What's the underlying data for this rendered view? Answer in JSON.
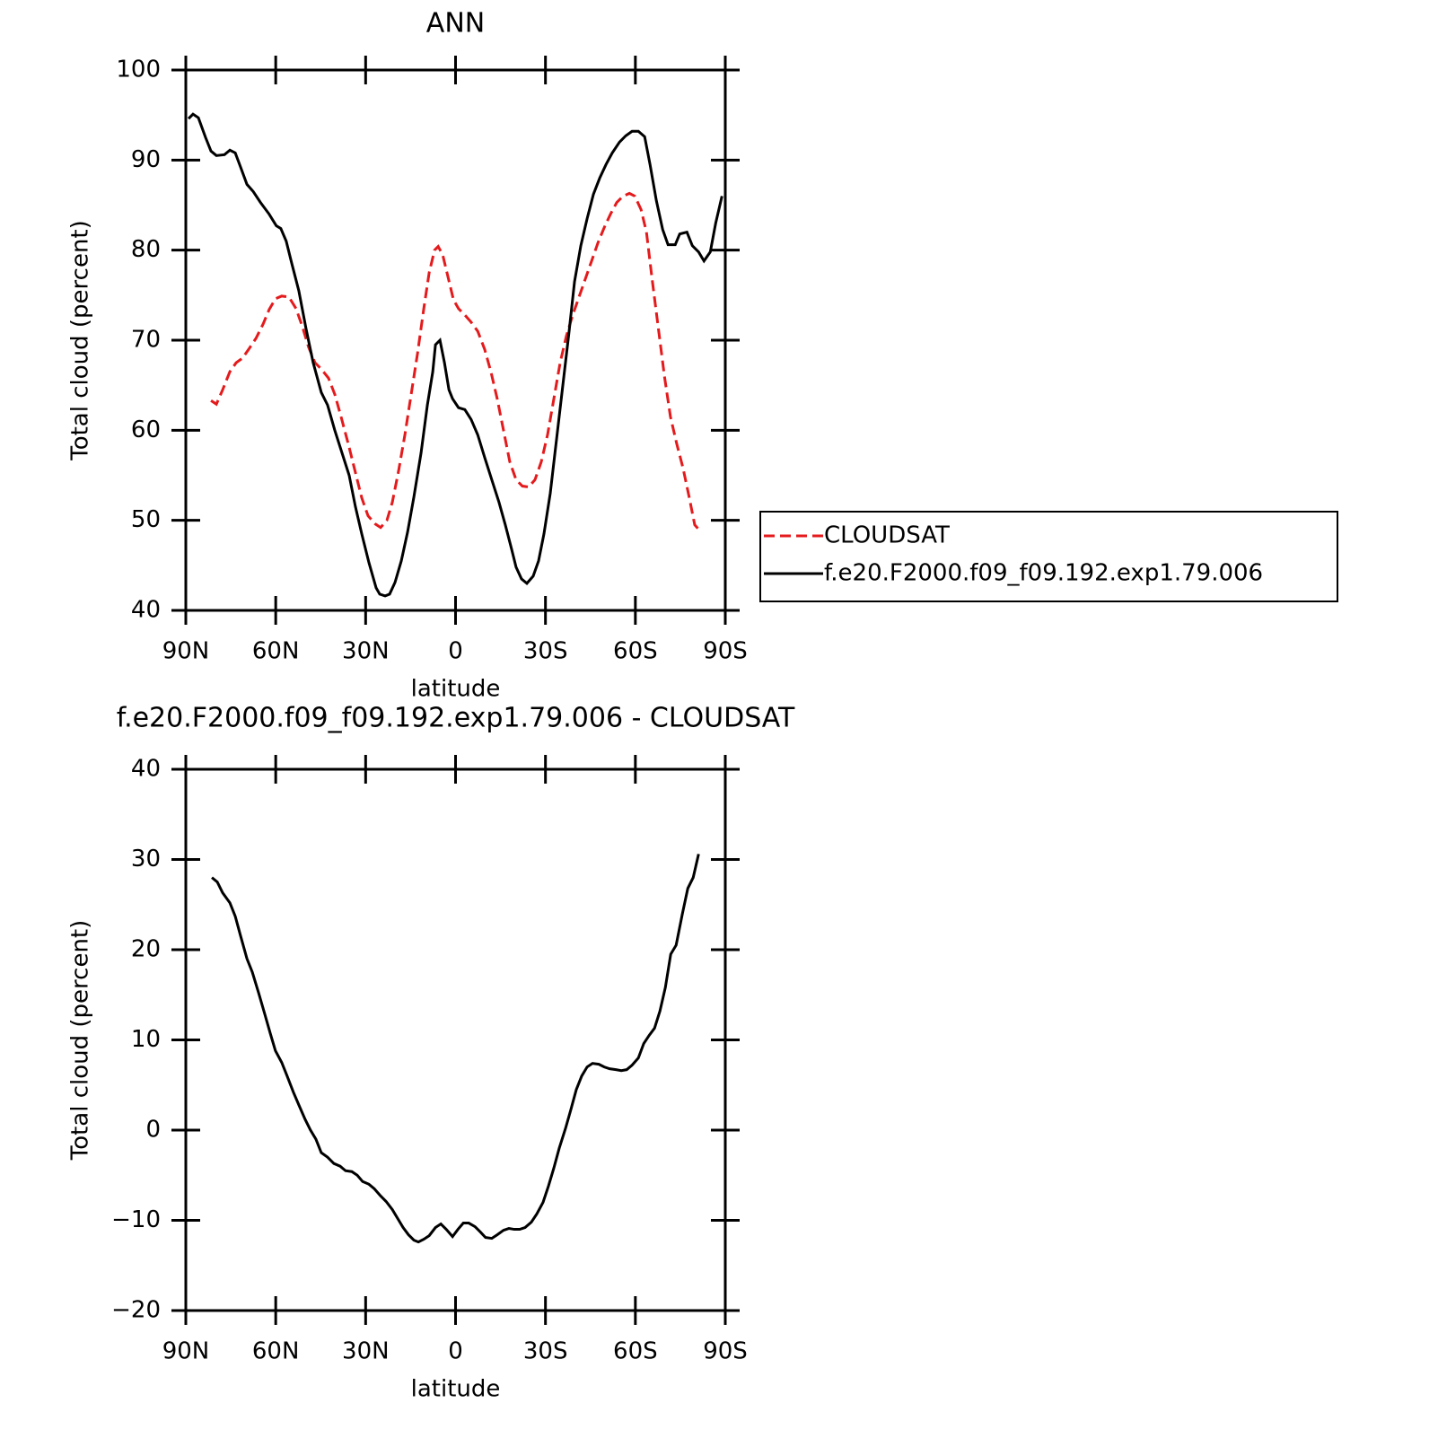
{
  "chart_data": [
    {
      "type": "line",
      "title": "ANN",
      "x_label": "latitude",
      "y_label": "Total cloud (percent)",
      "xlim": [
        90,
        -90
      ],
      "ylim": [
        40,
        100
      ],
      "xticks": [
        {
          "value": 90,
          "label": "90N"
        },
        {
          "value": 60,
          "label": "60N"
        },
        {
          "value": 30,
          "label": "30N"
        },
        0,
        {
          "value": -30,
          "label": "30S"
        },
        {
          "value": -60,
          "label": "60S"
        },
        {
          "value": -90,
          "label": "90S"
        }
      ],
      "yticks": [
        40,
        50,
        60,
        70,
        80,
        90,
        100
      ],
      "legend": "outside-right",
      "series": [
        {
          "name": "CLOUDSAT",
          "color": "#e41a1c",
          "dashed": true,
          "x": [
            81.6,
            79.8,
            77.7,
            75.3,
            73.2,
            71.1,
            69.0,
            66.6,
            64.2,
            62.2,
            60.1,
            58.0,
            55.6,
            53.2,
            51.1,
            49.0,
            46.9,
            44.8,
            42.4,
            40.3,
            38.2,
            35.8,
            33.4,
            31.3,
            29.2,
            26.8,
            25.0,
            22.9,
            21.1,
            19.0,
            16.9,
            14.8,
            12.7,
            10.6,
            8.8,
            7.0,
            5.8,
            4.3,
            2.5,
            0.7,
            -1.0,
            -3.1,
            -5.2,
            -7.4,
            -9.7,
            -11.8,
            -13.9,
            -16.0,
            -18.1,
            -20.2,
            -22.3,
            -24.4,
            -26.5,
            -28.6,
            -30.7,
            -32.8,
            -34.9,
            -37.0,
            -39.1,
            -41.2,
            -43.3,
            -45.4,
            -47.5,
            -49.6,
            -51.7,
            -53.8,
            -55.9,
            -58.0,
            -59.8,
            -61.9,
            -63.7,
            -65.5,
            -67.6,
            -69.7,
            -71.7,
            -73.8,
            -75.9,
            -78.0,
            -79.8,
            -81.1
          ],
          "values": [
            63.3,
            62.9,
            64.5,
            66.5,
            67.5,
            68.0,
            69.0,
            70.2,
            71.8,
            73.4,
            74.6,
            74.9,
            74.8,
            73.5,
            71.5,
            69.2,
            67.5,
            66.8,
            65.8,
            64.0,
            61.5,
            58.5,
            55.3,
            52.5,
            50.5,
            49.6,
            49.2,
            50.0,
            52.0,
            55.5,
            59.5,
            64.0,
            68.5,
            73.5,
            77.5,
            80.0,
            80.4,
            79.5,
            77.0,
            74.5,
            73.5,
            72.8,
            72.0,
            71.0,
            69.0,
            66.5,
            63.5,
            60.0,
            56.5,
            54.5,
            53.8,
            53.7,
            54.5,
            56.5,
            59.5,
            63.5,
            67.5,
            70.5,
            72.8,
            74.8,
            76.8,
            78.8,
            80.8,
            82.5,
            84.0,
            85.3,
            86.0,
            86.3,
            86.0,
            84.5,
            82.0,
            77.0,
            71.5,
            66.0,
            61.5,
            58.5,
            55.8,
            52.5,
            49.5,
            49.0
          ]
        },
        {
          "name": "f.e20.F2000.f09_f09.192.exp1.79.006",
          "color": "#000000",
          "dashed": false,
          "x": [
            89.1,
            87.6,
            85.8,
            83.4,
            81.6,
            79.8,
            77.1,
            75.3,
            73.5,
            71.7,
            69.6,
            67.5,
            65.1,
            62.2,
            59.8,
            58.3,
            56.5,
            54.7,
            52.3,
            49.9,
            47.5,
            44.8,
            42.7,
            40.3,
            37.9,
            35.5,
            33.4,
            31.3,
            28.9,
            26.5,
            25.3,
            23.5,
            22.0,
            20.2,
            18.1,
            16.0,
            13.9,
            11.5,
            9.4,
            7.6,
            6.7,
            5.2,
            3.7,
            2.2,
            1.0,
            -1.0,
            -3.1,
            -5.2,
            -7.4,
            -9.7,
            -12.1,
            -14.5,
            -16.6,
            -18.7,
            -20.2,
            -22.0,
            -23.8,
            -25.9,
            -27.7,
            -29.5,
            -31.6,
            -33.7,
            -35.8,
            -37.9,
            -39.7,
            -41.8,
            -43.9,
            -46.0,
            -48.1,
            -50.2,
            -52.3,
            -54.7,
            -56.8,
            -58.9,
            -61.0,
            -63.1,
            -64.9,
            -67.0,
            -69.1,
            -70.9,
            -73.3,
            -74.8,
            -77.2,
            -79.0,
            -81.1,
            -82.9,
            -85.0,
            -86.8,
            -88.9
          ],
          "values": [
            94.6,
            95.1,
            94.7,
            92.5,
            91.0,
            90.5,
            90.6,
            91.1,
            90.8,
            89.2,
            87.3,
            86.5,
            85.3,
            84.0,
            82.7,
            82.4,
            81.0,
            78.6,
            75.5,
            71.3,
            67.5,
            64.2,
            62.8,
            60.0,
            57.5,
            55.0,
            51.5,
            48.5,
            45.3,
            42.5,
            41.8,
            41.6,
            41.8,
            43.1,
            45.5,
            48.7,
            52.6,
            57.5,
            62.8,
            66.5,
            69.5,
            70.0,
            67.5,
            64.5,
            63.5,
            62.5,
            62.3,
            61.2,
            59.5,
            57.0,
            54.5,
            52.0,
            49.5,
            46.8,
            44.8,
            43.5,
            43.0,
            43.8,
            45.5,
            48.5,
            53.0,
            59.0,
            65.0,
            71.0,
            76.5,
            80.5,
            83.5,
            86.2,
            88.0,
            89.5,
            90.8,
            92.0,
            92.7,
            93.2,
            93.2,
            92.6,
            89.5,
            85.5,
            82.3,
            80.6,
            80.6,
            81.8,
            82.0,
            80.5,
            79.8,
            78.8,
            79.8,
            83.0,
            86.0
          ]
        }
      ]
    },
    {
      "type": "line",
      "title": "f.e20.F2000.f09_f09.192.exp1.79.006 - CLOUDSAT",
      "x_label": "latitude",
      "y_label": "Total cloud (percent)",
      "xlim": [
        90,
        -90
      ],
      "ylim": [
        -20,
        40
      ],
      "xticks": [
        {
          "value": 90,
          "label": "90N"
        },
        {
          "value": 60,
          "label": "60N"
        },
        {
          "value": 30,
          "label": "30N"
        },
        0,
        {
          "value": -30,
          "label": "30S"
        },
        {
          "value": -60,
          "label": "60S"
        },
        {
          "value": -90,
          "label": "90S"
        }
      ],
      "yticks": [
        {
          "value": -20,
          "label": "−20"
        },
        {
          "value": -10,
          "label": "−10"
        },
        0,
        10,
        20,
        30,
        40
      ],
      "series": [
        {
          "color": "#000000",
          "dashed": false,
          "x": [
            81.3,
            79.5,
            77.7,
            75.3,
            73.5,
            71.7,
            69.6,
            67.8,
            65.7,
            63.6,
            61.8,
            60.1,
            58.0,
            56.2,
            54.1,
            52.3,
            50.2,
            48.4,
            46.6,
            44.8,
            42.7,
            40.6,
            38.5,
            36.7,
            34.6,
            32.8,
            31.0,
            28.9,
            27.1,
            25.0,
            23.2,
            21.1,
            19.3,
            17.5,
            15.7,
            13.9,
            12.4,
            10.6,
            8.8,
            6.7,
            4.9,
            3.1,
            1.0,
            -0.8,
            -2.6,
            -4.4,
            -6.5,
            -8.3,
            -10.0,
            -12.1,
            -13.9,
            -16.0,
            -17.8,
            -19.6,
            -21.4,
            -23.2,
            -25.3,
            -27.1,
            -29.2,
            -31.0,
            -32.8,
            -34.6,
            -36.7,
            -38.5,
            -40.3,
            -42.1,
            -43.9,
            -45.7,
            -47.8,
            -49.6,
            -51.4,
            -53.5,
            -55.3,
            -57.1,
            -58.9,
            -61.0,
            -62.8,
            -64.6,
            -66.4,
            -68.2,
            -70.0,
            -71.8,
            -73.6,
            -75.7,
            -77.5,
            -79.3,
            -81.1
          ],
          "values": [
            28.0,
            27.5,
            26.3,
            25.2,
            23.7,
            21.5,
            19.0,
            17.5,
            15.2,
            12.8,
            10.7,
            8.8,
            7.5,
            6.0,
            4.2,
            2.8,
            1.2,
            0.0,
            -1.0,
            -2.5,
            -3.0,
            -3.7,
            -4.0,
            -4.5,
            -4.6,
            -5.0,
            -5.7,
            -6.0,
            -6.5,
            -7.3,
            -7.9,
            -8.8,
            -9.8,
            -10.8,
            -11.6,
            -12.2,
            -12.4,
            -12.1,
            -11.7,
            -10.8,
            -10.4,
            -11.0,
            -11.8,
            -11.0,
            -10.3,
            -10.3,
            -10.7,
            -11.3,
            -11.9,
            -12.0,
            -11.6,
            -11.1,
            -10.9,
            -11.0,
            -11.0,
            -10.8,
            -10.2,
            -9.3,
            -8.0,
            -6.2,
            -4.2,
            -2.0,
            0.2,
            2.3,
            4.5,
            6.0,
            7.0,
            7.4,
            7.3,
            7.0,
            6.8,
            6.7,
            6.6,
            6.7,
            7.2,
            8.0,
            9.6,
            10.5,
            11.3,
            13.2,
            15.8,
            19.5,
            20.5,
            24.0,
            26.8,
            28.0,
            30.6
          ]
        }
      ]
    }
  ]
}
